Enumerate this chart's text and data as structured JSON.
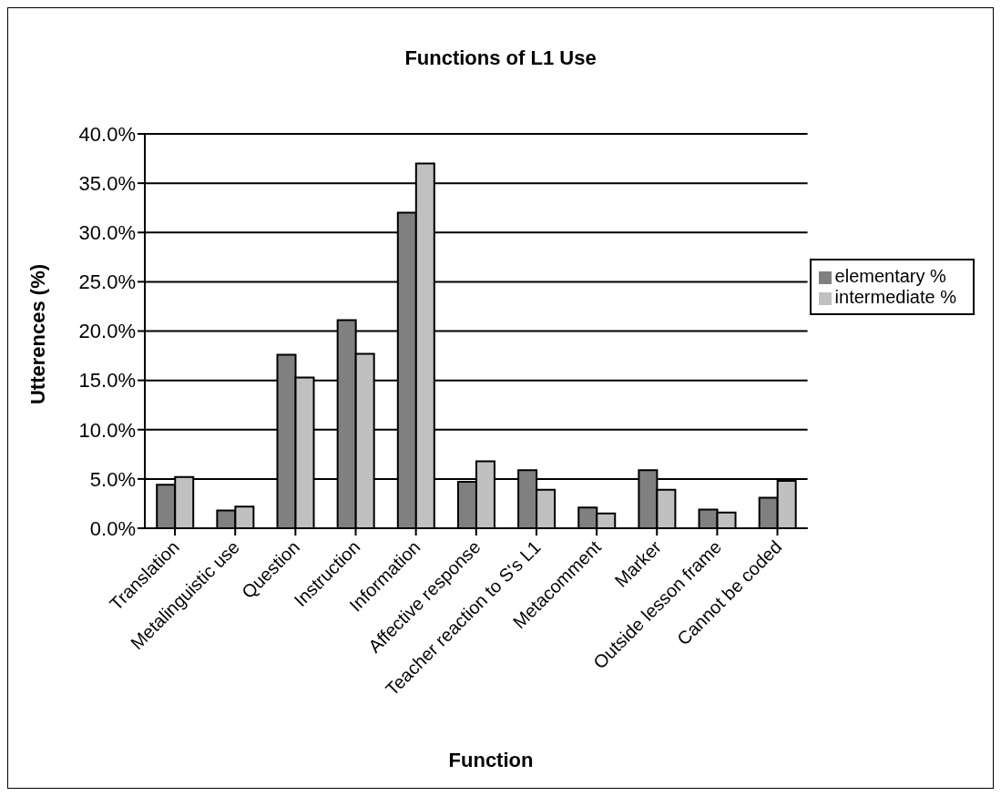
{
  "chart_data": {
    "type": "bar",
    "title": "Functions of L1 Use",
    "xlabel": "Function",
    "ylabel": "Utterences (%)",
    "categories": [
      "Translation",
      "Metalinguistic use",
      "Question",
      "Instruction",
      "Information",
      "Affective response",
      "Teacher reaction to S's L1",
      "Metacomment",
      "Marker",
      "Outside lesson frame",
      "Cannot be coded"
    ],
    "series": [
      {
        "name": "elementary %",
        "color": "#808080",
        "values": [
          4.4,
          1.8,
          17.6,
          21.1,
          32.0,
          4.7,
          5.9,
          2.1,
          5.9,
          1.9,
          3.1
        ]
      },
      {
        "name": "intermediate %",
        "color": "#c0c0c0",
        "values": [
          5.2,
          2.2,
          15.3,
          17.7,
          37.0,
          6.8,
          3.9,
          1.5,
          3.9,
          1.6,
          4.8
        ]
      }
    ],
    "ylim": [
      0,
      40
    ],
    "yticks": [
      {
        "value": 0,
        "label": "0.0%"
      },
      {
        "value": 5,
        "label": "5.0%"
      },
      {
        "value": 10,
        "label": "10.0%"
      },
      {
        "value": 15,
        "label": "15.0%"
      },
      {
        "value": 20,
        "label": "20.0%"
      },
      {
        "value": 25,
        "label": "25.0%"
      },
      {
        "value": 30,
        "label": "30.0%"
      },
      {
        "value": 35,
        "label": "35.0%"
      },
      {
        "value": 40,
        "label": "40.0%"
      }
    ],
    "grid": "y",
    "legend": "right"
  }
}
